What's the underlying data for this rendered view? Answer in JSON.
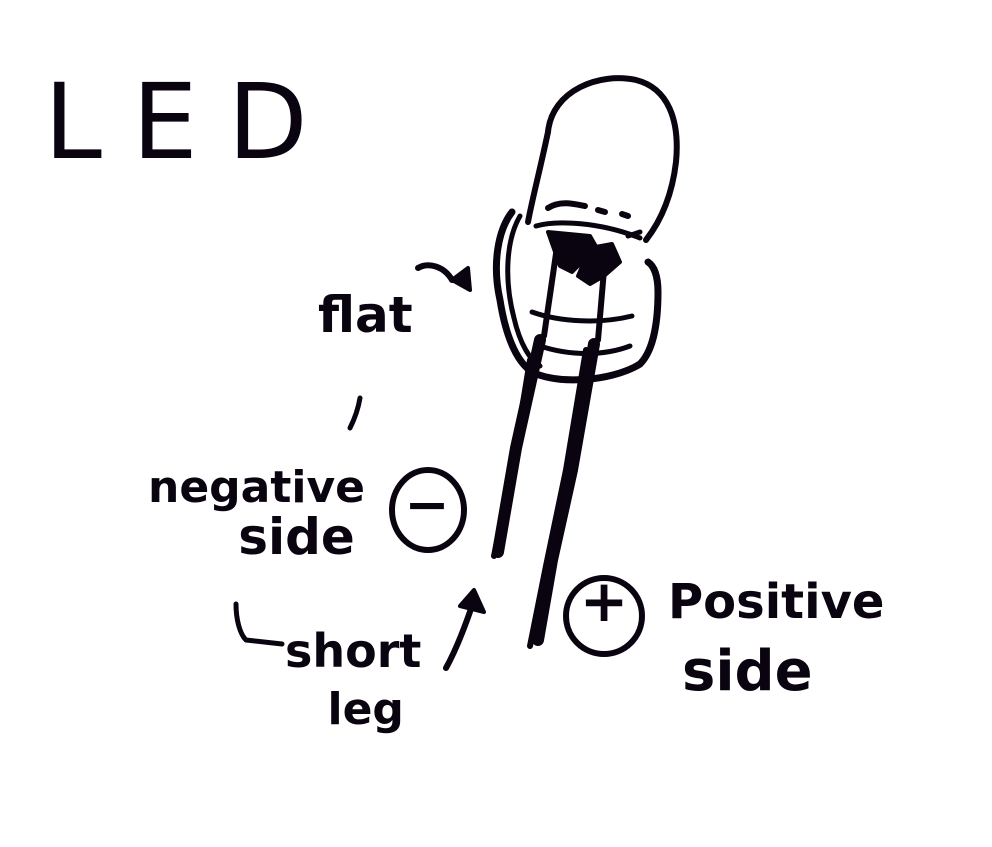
{
  "title": "LED",
  "labels": {
    "flat": "flat",
    "negative_line1": "negative",
    "negative_line2": "side",
    "negative_sign": "−",
    "short_line1": "short",
    "short_line2": "leg",
    "positive_line1": "Positive",
    "positive_line2": "side",
    "positive_sign": "+"
  },
  "colors": {
    "ink": "#0a0410",
    "background": "#ffffff"
  }
}
